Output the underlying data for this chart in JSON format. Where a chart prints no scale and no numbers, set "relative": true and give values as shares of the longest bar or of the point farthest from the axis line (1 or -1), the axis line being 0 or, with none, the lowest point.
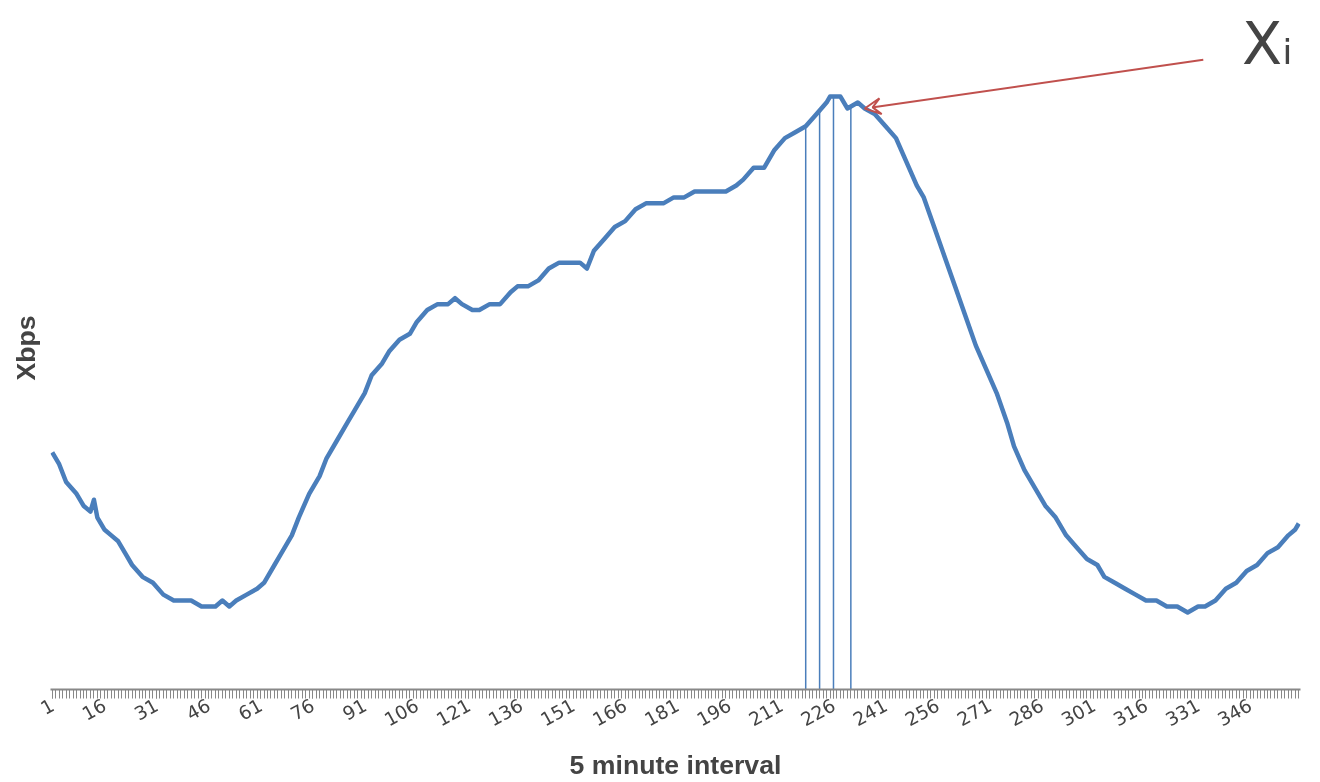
{
  "chart_data": {
    "type": "line",
    "relative": true,
    "xlabel": "5 minute interval",
    "ylabel": "Xbps",
    "xlim": [
      0.5,
      360.5
    ],
    "xticks": [
      1,
      16,
      31,
      46,
      61,
      76,
      91,
      106,
      121,
      136,
      151,
      166,
      181,
      196,
      211,
      226,
      241,
      256,
      271,
      286,
      301,
      316,
      331,
      346
    ],
    "x": [
      1,
      3,
      5,
      8,
      10,
      12,
      13,
      14,
      16,
      18,
      20,
      22,
      24,
      27,
      30,
      33,
      36,
      39,
      41,
      44,
      47,
      48,
      50,
      52,
      54,
      57,
      60,
      62,
      65,
      67,
      70,
      72,
      75,
      78,
      80,
      83,
      86,
      88,
      91,
      93,
      96,
      98,
      101,
      104,
      106,
      109,
      112,
      115,
      117,
      119,
      122,
      124,
      127,
      130,
      133,
      135,
      138,
      141,
      144,
      147,
      150,
      153,
      155,
      157,
      160,
      163,
      166,
      169,
      172,
      174,
      177,
      180,
      183,
      186,
      189,
      192,
      195,
      198,
      200,
      203,
      206,
      209,
      212,
      215,
      218,
      221,
      224,
      225,
      228,
      230,
      233,
      235,
      238,
      241,
      244,
      247,
      250,
      252,
      255,
      258,
      261,
      264,
      267,
      270,
      273,
      276,
      278,
      281,
      284,
      287,
      290,
      293,
      296,
      299,
      302,
      304,
      307,
      310,
      313,
      316,
      319,
      322,
      325,
      328,
      331,
      333,
      336,
      339,
      342,
      345,
      348,
      351,
      354,
      357,
      359,
      360
    ],
    "series": [
      {
        "color": "#4a7ebb",
        "values": [
          0.4,
          0.38,
          0.35,
          0.33,
          0.31,
          0.3,
          0.32,
          0.29,
          0.27,
          0.26,
          0.25,
          0.23,
          0.21,
          0.19,
          0.18,
          0.16,
          0.15,
          0.15,
          0.15,
          0.14,
          0.14,
          0.14,
          0.15,
          0.14,
          0.15,
          0.16,
          0.17,
          0.18,
          0.21,
          0.23,
          0.26,
          0.29,
          0.33,
          0.36,
          0.39,
          0.42,
          0.45,
          0.47,
          0.5,
          0.53,
          0.55,
          0.57,
          0.59,
          0.6,
          0.62,
          0.64,
          0.65,
          0.65,
          0.66,
          0.65,
          0.64,
          0.64,
          0.65,
          0.65,
          0.67,
          0.68,
          0.68,
          0.69,
          0.71,
          0.72,
          0.72,
          0.72,
          0.71,
          0.74,
          0.76,
          0.78,
          0.79,
          0.81,
          0.82,
          0.82,
          0.82,
          0.83,
          0.83,
          0.84,
          0.84,
          0.84,
          0.84,
          0.85,
          0.86,
          0.88,
          0.88,
          0.91,
          0.93,
          0.94,
          0.95,
          0.97,
          0.99,
          1.0,
          1.0,
          0.98,
          0.99,
          0.98,
          0.97,
          0.95,
          0.93,
          0.89,
          0.85,
          0.83,
          0.78,
          0.73,
          0.68,
          0.63,
          0.58,
          0.54,
          0.5,
          0.45,
          0.41,
          0.37,
          0.34,
          0.31,
          0.29,
          0.26,
          0.24,
          0.22,
          0.21,
          0.19,
          0.18,
          0.17,
          0.16,
          0.15,
          0.15,
          0.14,
          0.14,
          0.13,
          0.14,
          0.14,
          0.15,
          0.17,
          0.18,
          0.2,
          0.21,
          0.23,
          0.24,
          0.26,
          0.27,
          0.28
        ]
      }
    ],
    "ref_lines": [
      {
        "axis": "x",
        "value": 218,
        "color": "#4a7ebb"
      },
      {
        "axis": "x",
        "value": 222,
        "color": "#4a7ebb"
      },
      {
        "axis": "x",
        "value": 226,
        "color": "#4a7ebb"
      },
      {
        "axis": "x",
        "value": 231,
        "color": "#4a7ebb"
      }
    ],
    "annotations": [
      {
        "text": "Xᵢ",
        "x": 235,
        "y": 0.98
      }
    ],
    "grid": false,
    "marker": "none",
    "line_style": "solid"
  }
}
